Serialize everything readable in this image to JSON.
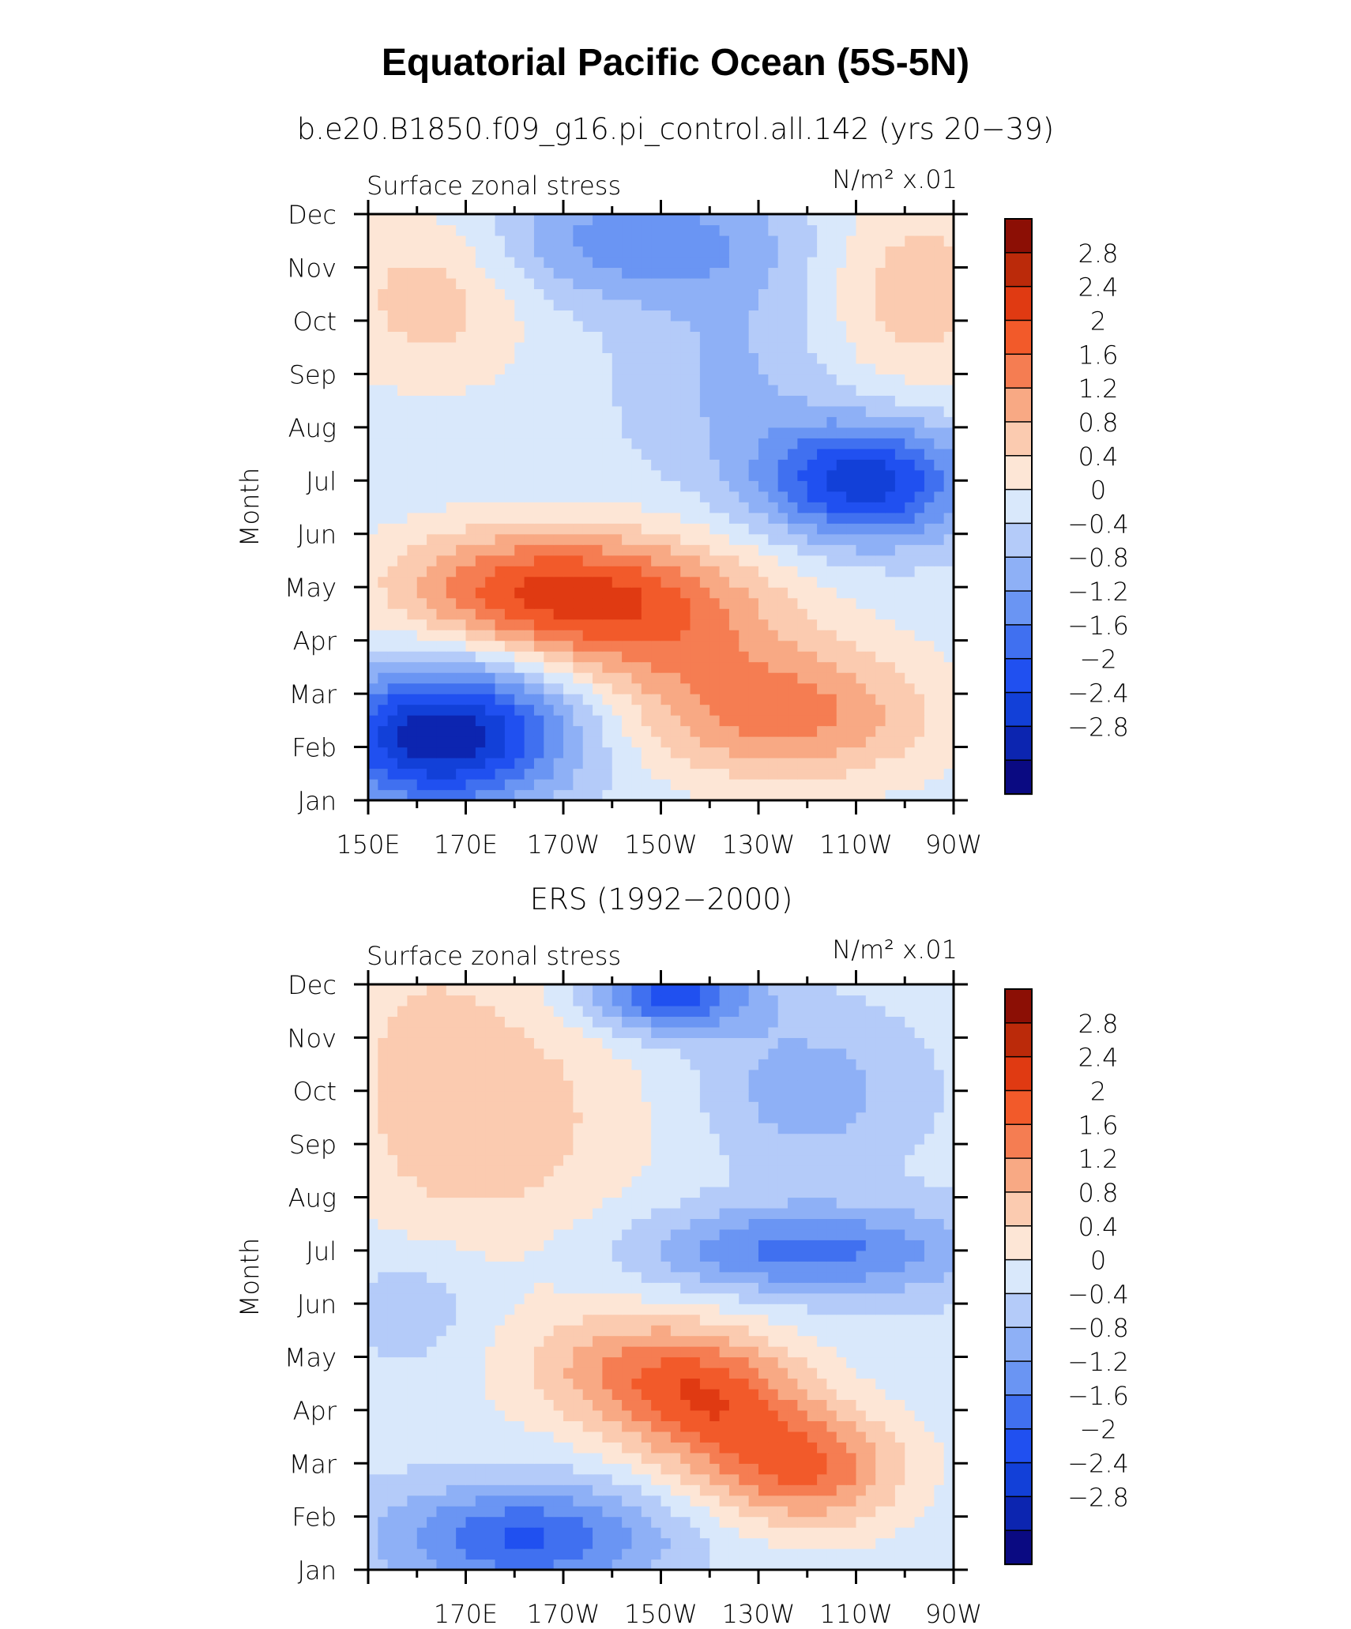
{
  "figure": {
    "title": "Equatorial Pacific Ocean (5S-5N)"
  },
  "colors": {
    "levels": [
      -3.2,
      -2.8,
      -2.4,
      -2,
      -1.6,
      -1.2,
      -0.8,
      -0.4,
      0,
      0.4,
      0.8,
      1.2,
      1.6,
      2,
      2.4,
      2.8,
      3.2
    ],
    "fills": [
      "#0a0a82",
      "#0c25b0",
      "#1240d8",
      "#2050f0",
      "#4070f0",
      "#6a95f3",
      "#8eb0f6",
      "#b4cbf9",
      "#d9e8fb",
      "#fde6d6",
      "#fbcbb0",
      "#f8a984",
      "#f57d52",
      "#f25a2a",
      "#e03a12",
      "#bb2a0a",
      "#8c0f05"
    ]
  },
  "chart_data": [
    {
      "type": "heatmap",
      "subtitle": "b.e20.B1850.f09_g16.pi_control.all.142 (yrs 20−39)",
      "left_label": "Surface zonal stress",
      "right_label": "N/m² x.01",
      "ylabel": "Month",
      "x_tick_labels": [
        "150E",
        "170E",
        "170W",
        "150W",
        "130W",
        "110W",
        "90W"
      ],
      "x_tick_values": [
        150,
        170,
        190,
        210,
        230,
        250,
        270
      ],
      "xlim": [
        150,
        270
      ],
      "y_tick_labels": [
        "Jan",
        "Feb",
        "Mar",
        "Apr",
        "May",
        "Jun",
        "Jul",
        "Aug",
        "Sep",
        "Oct",
        "Nov",
        "Dec"
      ],
      "ylim": [
        1,
        12
      ],
      "colorbar_labels": [
        "2.8",
        "2.4",
        "2",
        "1.6",
        "1.2",
        "0.8",
        "0.4",
        "0",
        "−0.4",
        "−0.8",
        "−1.2",
        "−1.6",
        "−2",
        "−2.4",
        "−2.8"
      ],
      "features": [
        {
          "lon": 162,
          "month": 2.1,
          "value": -2.0,
          "sx": 16,
          "sy": 0.9
        },
        {
          "lon": 175,
          "month": 2.5,
          "value": -1.2,
          "sx": 18,
          "sy": 1.0
        },
        {
          "lon": 235,
          "month": 2.6,
          "value": 1.6,
          "sx": 22,
          "sy": 0.9
        },
        {
          "lon": 205,
          "month": 4.5,
          "value": 1.7,
          "sx": 22,
          "sy": 1.0
        },
        {
          "lon": 180,
          "month": 5.0,
          "value": 1.5,
          "sx": 20,
          "sy": 0.8
        },
        {
          "lon": 252,
          "month": 7.0,
          "value": -2.4,
          "sx": 15,
          "sy": 0.8
        },
        {
          "lon": 205,
          "month": 11.5,
          "value": -1.2,
          "sx": 22,
          "sy": 0.8
        },
        {
          "lon": 163,
          "month": 10.5,
          "value": 0.9,
          "sx": 14,
          "sy": 1.2
        },
        {
          "lon": 262,
          "month": 10.6,
          "value": 0.9,
          "sx": 14,
          "sy": 1.4
        },
        {
          "lon": 225,
          "month": 9.0,
          "value": -0.6,
          "sx": 15,
          "sy": 1.5
        }
      ]
    },
    {
      "type": "heatmap",
      "subtitle": "ERS (1992−2000)",
      "left_label": "Surface zonal stress",
      "right_label": "N/m² x.01",
      "ylabel": "Month",
      "x_tick_labels": [
        "170E",
        "170W",
        "150W",
        "130W",
        "110W",
        "90W"
      ],
      "x_tick_values": [
        170,
        190,
        210,
        230,
        250,
        270
      ],
      "xlim": [
        150,
        270
      ],
      "y_tick_labels": [
        "Jan",
        "Feb",
        "Mar",
        "Apr",
        "May",
        "Jun",
        "Jul",
        "Aug",
        "Sep",
        "Oct",
        "Nov",
        "Dec"
      ],
      "ylim": [
        1,
        12
      ],
      "colorbar_labels": [
        "2.8",
        "2.4",
        "2",
        "1.6",
        "1.2",
        "0.8",
        "0.4",
        "0",
        "−0.4",
        "−0.8",
        "−1.2",
        "−1.6",
        "−2",
        "−2.4",
        "−2.8"
      ],
      "features": [
        {
          "lon": 182,
          "month": 1.6,
          "value": -1.8,
          "sx": 20,
          "sy": 0.7
        },
        {
          "lon": 212,
          "month": 11.8,
          "value": -2.0,
          "sx": 12,
          "sy": 0.5
        },
        {
          "lon": 240,
          "month": 2.9,
          "value": 1.8,
          "sx": 14,
          "sy": 0.8
        },
        {
          "lon": 220,
          "month": 4.2,
          "value": 1.8,
          "sx": 14,
          "sy": 0.9
        },
        {
          "lon": 200,
          "month": 4.8,
          "value": 1.0,
          "sx": 16,
          "sy": 0.8
        },
        {
          "lon": 240,
          "month": 7.0,
          "value": -1.5,
          "sx": 25,
          "sy": 0.6
        },
        {
          "lon": 180,
          "month": 9.5,
          "value": 0.8,
          "sx": 20,
          "sy": 2.0
        },
        {
          "lon": 160,
          "month": 10.5,
          "value": 0.5,
          "sx": 12,
          "sy": 2.0
        },
        {
          "lon": 240,
          "month": 10.0,
          "value": -0.8,
          "sx": 15,
          "sy": 1.0
        },
        {
          "lon": 160,
          "month": 6.0,
          "value": -0.5,
          "sx": 10,
          "sy": 0.8
        }
      ]
    }
  ]
}
